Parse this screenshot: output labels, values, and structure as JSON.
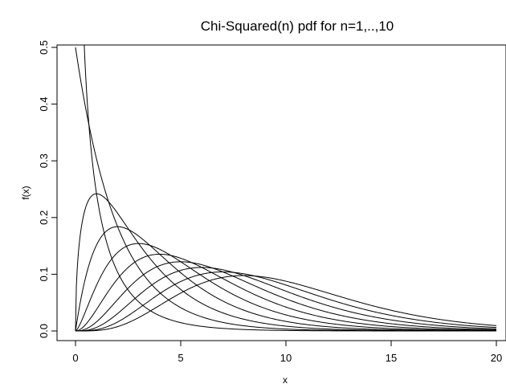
{
  "chart_data": {
    "type": "line",
    "title": "Chi-Squared(n) pdf for n=1,..,10",
    "xlabel": "x",
    "ylabel": "f(x)",
    "xlim": [
      0,
      20
    ],
    "ylim": [
      0,
      0.5
    ],
    "x_ticks": [
      0,
      5,
      10,
      15,
      20
    ],
    "x_tick_labels": [
      "0",
      "5",
      "10",
      "15",
      "20"
    ],
    "y_ticks": [
      0.0,
      0.1,
      0.2,
      0.3,
      0.4,
      0.5
    ],
    "y_tick_labels": [
      "0.0",
      "0.1",
      "0.2",
      "0.3",
      "0.4",
      "0.5"
    ],
    "grid": false,
    "legend": "none",
    "line_color": "#000000",
    "x": [
      0,
      0.5,
      1,
      1.5,
      2,
      3,
      4,
      5,
      6,
      7,
      8,
      9,
      10,
      12,
      14,
      16,
      18,
      20
    ],
    "series": [
      {
        "n": 1,
        "values": [
          null,
          0.4394,
          0.242,
          0.1538,
          0.1038,
          0.0514,
          0.027,
          0.0146,
          0.0081,
          0.0045,
          0.0025,
          0.0015,
          0.0009,
          0.0003,
          0.0001,
          0.0,
          0.0,
          0.0
        ]
      },
      {
        "n": 2,
        "values": [
          0.5,
          0.3894,
          0.3033,
          0.2362,
          0.1839,
          0.1116,
          0.0677,
          0.041,
          0.0249,
          0.0151,
          0.0092,
          0.0056,
          0.0034,
          0.0012,
          0.0005,
          0.0002,
          0.0001,
          0.0
        ]
      },
      {
        "n": 3,
        "values": [
          0.0,
          0.2197,
          0.242,
          0.2306,
          0.2076,
          0.1542,
          0.108,
          0.0732,
          0.0487,
          0.0319,
          0.0208,
          0.0134,
          0.0085,
          0.0034,
          0.0013,
          0.0005,
          0.0002,
          0.0001
        ]
      },
      {
        "n": 4,
        "values": [
          0.0,
          0.0974,
          0.1516,
          0.1771,
          0.1839,
          0.1673,
          0.1353,
          0.1026,
          0.0747,
          0.0528,
          0.0366,
          0.025,
          0.0168,
          0.0074,
          0.0032,
          0.0013,
          0.0006,
          0.0002
        ]
      },
      {
        "n": 5,
        "values": [
          0.0,
          0.0366,
          0.0807,
          0.1153,
          0.1384,
          0.1542,
          0.144,
          0.122,
          0.0973,
          0.0744,
          0.0551,
          0.0399,
          0.0283,
          0.0137,
          0.0064,
          0.0029,
          0.0013,
          0.0006
        ]
      },
      {
        "n": 6,
        "values": [
          0.0,
          0.0122,
          0.0379,
          0.0664,
          0.092,
          0.1255,
          0.1353,
          0.1283,
          0.112,
          0.0925,
          0.0733,
          0.0562,
          0.0421,
          0.0223,
          0.0112,
          0.0054,
          0.0025,
          0.0011
        ]
      },
      {
        "n": 7,
        "values": [
          0.0,
          0.0037,
          0.0161,
          0.0346,
          0.0553,
          0.0925,
          0.1151,
          0.1219,
          0.1167,
          0.1041,
          0.0878,
          0.0711,
          0.0559,
          0.0326,
          0.0177,
          0.0092,
          0.0045,
          0.0022
        ]
      },
      {
        "n": 8,
        "values": [
          0.0,
          0.001,
          0.0063,
          0.0166,
          0.0307,
          0.0628,
          0.0902,
          0.1069,
          0.112,
          0.1075,
          0.0977,
          0.0842,
          0.0702,
          0.0446,
          0.0261,
          0.0143,
          0.0075,
          0.0038
        ]
      },
      {
        "n": 9,
        "values": [
          0.0,
          0.0002,
          0.0023,
          0.0074,
          0.0158,
          0.0396,
          0.0658,
          0.0873,
          0.1003,
          0.1041,
          0.1005,
          0.0921,
          0.0812,
          0.0566,
          0.0361,
          0.0214,
          0.0119,
          0.0063
        ]
      },
      {
        "n": 10,
        "values": [
          0.0,
          0.0001,
          0.0008,
          0.0031,
          0.0077,
          0.0235,
          0.0451,
          0.0668,
          0.0841,
          0.0942,
          0.0977,
          0.0949,
          0.0877,
          0.0669,
          0.0464,
          0.0301,
          0.0184,
          0.0107
        ]
      }
    ]
  }
}
